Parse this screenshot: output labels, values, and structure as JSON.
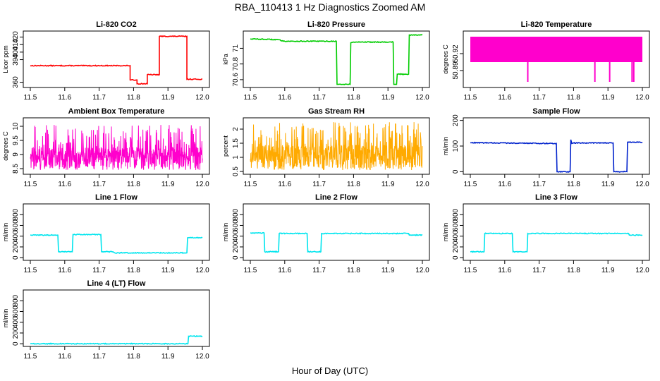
{
  "figure": {
    "title": "RBA_110413  1 Hz Diagnostics Zoomed AM",
    "x_axis_label": "Hour of Day (UTC)"
  },
  "chart_data": [
    {
      "type": "line",
      "title": "Li-820 CO2",
      "ylabel": "Licor ppm",
      "color": "#ff0000",
      "xlim": [
        11.5,
        12.0
      ],
      "ylim": [
        353,
        428
      ],
      "x_ticks": [
        "11.5",
        "11.6",
        "11.7",
        "11.8",
        "11.9",
        "12.0"
      ],
      "y_ticks": [
        360,
        390,
        400,
        410,
        420
      ],
      "x": [
        11.5,
        11.79,
        11.79,
        11.81,
        11.81,
        11.84,
        11.84,
        11.875,
        11.875,
        11.955,
        11.955,
        12.0
      ],
      "y": [
        382,
        382,
        363,
        363,
        358,
        358,
        370,
        370,
        421,
        421,
        364,
        364
      ]
    },
    {
      "type": "line",
      "title": "Li-820 Pressure",
      "ylabel": "kPa",
      "color": "#00cc00",
      "xlim": [
        11.5,
        12.0
      ],
      "ylim": [
        70.5,
        71.22
      ],
      "x_ticks": [
        "11.5",
        "11.6",
        "11.7",
        "11.8",
        "11.9",
        "12.0"
      ],
      "y_ticks": [
        70.6,
        70.8,
        71.0
      ],
      "x": [
        11.5,
        11.58,
        11.6,
        11.75,
        11.752,
        11.79,
        11.792,
        11.8,
        11.82,
        11.915,
        11.917,
        11.925,
        11.927,
        11.96,
        11.962,
        12.0
      ],
      "y": [
        71.12,
        71.11,
        71.09,
        71.09,
        70.54,
        70.54,
        71.07,
        71.08,
        71.08,
        71.08,
        70.54,
        70.54,
        70.67,
        70.67,
        71.17,
        71.17
      ]
    },
    {
      "type": "line",
      "title": "Li-820 Temperature",
      "ylabel": "degrees C",
      "color": "#ff00cc",
      "xlim": [
        11.5,
        12.0
      ],
      "ylim": [
        50.86,
        50.96
      ],
      "x_ticks": [
        "11.5",
        "11.6",
        "11.7",
        "11.8",
        "11.9",
        "12.0"
      ],
      "y_ticks": [
        50.89,
        50.92
      ],
      "band_low": 50.905,
      "band_high": 50.95,
      "spikes": [
        {
          "x": 11.667,
          "y": 50.87
        },
        {
          "x": 11.862,
          "y": 50.87
        },
        {
          "x": 11.905,
          "y": 50.87
        },
        {
          "x": 11.97,
          "y": 50.87
        },
        {
          "x": 11.975,
          "y": 50.87
        }
      ]
    },
    {
      "type": "line",
      "title": "Ambient Box Temperature",
      "ylabel": "degrees C",
      "color": "#ff00cc",
      "xlim": [
        11.5,
        12.0
      ],
      "ylim": [
        8.3,
        10.3
      ],
      "x_ticks": [
        "11.5",
        "11.6",
        "11.7",
        "11.8",
        "11.9",
        "12.0"
      ],
      "y_ticks": [
        8.5,
        9.0,
        9.5,
        10.0
      ],
      "noise": {
        "base": 8.85,
        "low": 8.45,
        "high": 10.05
      }
    },
    {
      "type": "line",
      "title": "Gas Stream RH",
      "ylabel": "percent",
      "color": "#ffaa00",
      "xlim": [
        11.5,
        12.0
      ],
      "ylim": [
        0.4,
        2.4
      ],
      "x_ticks": [
        "11.5",
        "11.6",
        "11.7",
        "11.8",
        "11.9",
        "12.0"
      ],
      "y_ticks": [
        0.5,
        1.0,
        1.5,
        2.0
      ],
      "noise": {
        "base": 1.0,
        "low": 0.55,
        "high": 2.25
      }
    },
    {
      "type": "line",
      "title": "Sample Flow",
      "ylabel": "ml/min",
      "color": "#0022cc",
      "xlim": [
        11.5,
        12.0
      ],
      "ylim": [
        -10,
        210
      ],
      "x_ticks": [
        "11.5",
        "11.6",
        "11.7",
        "11.8",
        "11.9",
        "12.0"
      ],
      "y_ticks": [
        0,
        100,
        200
      ],
      "x": [
        11.5,
        11.75,
        11.752,
        11.79,
        11.792,
        11.795,
        11.8,
        11.915,
        11.917,
        11.955,
        11.957,
        12.0
      ],
      "y": [
        113,
        110,
        0,
        0,
        125,
        110,
        112,
        112,
        0,
        0,
        115,
        115
      ]
    },
    {
      "type": "line",
      "title": "Line 1 Flow",
      "ylabel": "ml/min",
      "color": "#00e5ee",
      "xlim": [
        11.5,
        12.0
      ],
      "ylim": [
        -50,
        1000
      ],
      "x_ticks": [
        "11.5",
        "11.6",
        "11.7",
        "11.8",
        "11.9",
        "12.0"
      ],
      "y_ticks": [
        0,
        200,
        400,
        600,
        800
      ],
      "x": [
        11.5,
        11.58,
        11.582,
        11.622,
        11.624,
        11.705,
        11.707,
        11.74,
        11.745,
        11.955,
        11.957,
        12.0
      ],
      "y": [
        420,
        420,
        110,
        110,
        430,
        430,
        110,
        110,
        90,
        90,
        370,
        370
      ]
    },
    {
      "type": "line",
      "title": "Line 2 Flow",
      "ylabel": "ml/min",
      "color": "#00e5ee",
      "xlim": [
        11.5,
        12.0
      ],
      "ylim": [
        -50,
        1000
      ],
      "x_ticks": [
        "11.5",
        "11.6",
        "11.7",
        "11.8",
        "11.9",
        "12.0"
      ],
      "y_ticks": [
        0,
        200,
        400,
        600,
        800
      ],
      "x": [
        11.5,
        11.54,
        11.542,
        11.582,
        11.584,
        11.665,
        11.667,
        11.705,
        11.707,
        11.96,
        11.962,
        12.0
      ],
      "y": [
        460,
        460,
        110,
        110,
        450,
        450,
        110,
        110,
        450,
        450,
        420,
        420
      ]
    },
    {
      "type": "line",
      "title": "Line 3 Flow",
      "ylabel": "ml/min",
      "color": "#00e5ee",
      "xlim": [
        11.5,
        12.0
      ],
      "ylim": [
        -50,
        1000
      ],
      "x_ticks": [
        "11.5",
        "11.6",
        "11.7",
        "11.8",
        "11.9",
        "12.0"
      ],
      "y_ticks": [
        0,
        200,
        400,
        600,
        800
      ],
      "x": [
        11.5,
        11.54,
        11.542,
        11.622,
        11.624,
        11.665,
        11.667,
        11.96,
        11.962,
        12.0
      ],
      "y": [
        110,
        110,
        450,
        450,
        110,
        110,
        450,
        450,
        420,
        420
      ]
    },
    {
      "type": "line",
      "title": "Line 4 (LT) Flow",
      "ylabel": "ml/min",
      "color": "#00e5ee",
      "xlim": [
        11.5,
        12.0
      ],
      "ylim": [
        -50,
        1000
      ],
      "x_ticks": [
        "11.5",
        "11.6",
        "11.7",
        "11.8",
        "11.9",
        "12.0"
      ],
      "y_ticks": [
        0,
        200,
        400,
        600,
        800
      ],
      "x": [
        11.5,
        11.958,
        11.96,
        12.0
      ],
      "y": [
        0,
        0,
        140,
        140
      ]
    }
  ]
}
